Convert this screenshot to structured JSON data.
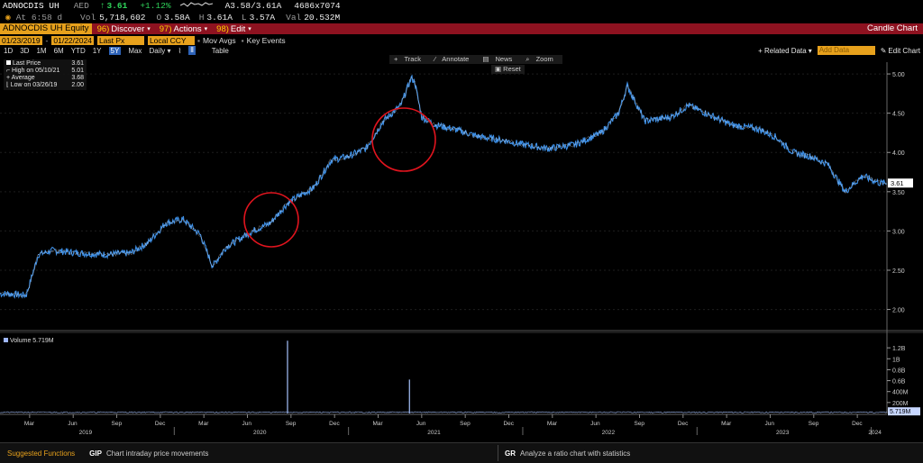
{
  "header": {
    "ticker": "ADNOCDIS UH",
    "currency": "AED",
    "arrow": "↑",
    "last": "3.61",
    "change": "+1.12%",
    "ask_bid": "A3.58/3.61A",
    "size": "4686x7074",
    "time_label": "At 6:58 d",
    "vol_label": "Vol",
    "volume": "5,718,602",
    "open_label": "O",
    "open": "3.58A",
    "high_label": "H",
    "high": "3.61A",
    "low_label": "L",
    "low": "3.57A",
    "val_label": "Val",
    "value": "20.532M"
  },
  "toolbar": {
    "security": "ADNOCDIS UH Equity",
    "discover_num": "96)",
    "discover": "Discover",
    "actions_num": "97)",
    "actions": "Actions",
    "edit_num": "98)",
    "edit": "Edit",
    "title": "Candle Chart"
  },
  "dates": {
    "start": "01/23/2019",
    "end": "01/22/2024",
    "field": "Last Px",
    "currency": "Local CCY",
    "mov_avgs": "Mov Avgs",
    "key_events": "Key Events"
  },
  "ranges": {
    "items": [
      "1D",
      "3D",
      "1M",
      "6M",
      "YTD",
      "1Y",
      "5Y",
      "Max"
    ],
    "selected": "5Y",
    "period": "Daily",
    "table": "Table",
    "related_data": "+ Related Data",
    "add_data": "Add Data",
    "edit_chart": "Edit Chart"
  },
  "mini_toolbar": {
    "track": "Track",
    "annotate": "Annotate",
    "news": "News",
    "zoom": "Zoom",
    "reset": "Reset"
  },
  "legend": {
    "last_price_label": "Last Price",
    "last_price": "3.61",
    "high_label": "High on 05/10/21",
    "high": "5.01",
    "average_label": "Average",
    "average": "3.68",
    "low_label": "Low on 03/26/19",
    "low": "2.00"
  },
  "volume_legend": "Volume 5.719M",
  "chart_data": {
    "type": "line",
    "x_labels": [
      "Mar",
      "Jun",
      "Sep",
      "Dec",
      "Mar",
      "Jun",
      "Sep",
      "Dec",
      "Mar",
      "Jun",
      "Sep",
      "Dec",
      "Mar",
      "Jun",
      "Sep",
      "Dec",
      "Mar",
      "Jun",
      "Sep",
      "Dec"
    ],
    "years": [
      "2019",
      "2020",
      "2021",
      "2022",
      "2023",
      "2024"
    ],
    "ylim": [
      1.8,
      5.15
    ],
    "y_ticks": [
      "5.00",
      "4.50",
      "4.00",
      "3.50",
      "3.00",
      "2.50",
      "2.00"
    ],
    "last_value_label": "3.61",
    "price_series": {
      "name": "Last Price",
      "x": [
        2019.05,
        2019.15,
        2019.22,
        2019.3,
        2019.45,
        2019.6,
        2019.75,
        2019.85,
        2019.95,
        2020.05,
        2020.15,
        2020.22,
        2020.3,
        2020.45,
        2020.55,
        2020.65,
        2020.72,
        2020.8,
        2020.9,
        2021.0,
        2021.1,
        2021.2,
        2021.3,
        2021.36,
        2021.38,
        2021.42,
        2021.5,
        2021.6,
        2021.75,
        2021.9,
        2022.0,
        2022.15,
        2022.3,
        2022.45,
        2022.55,
        2022.6,
        2022.7,
        2022.85,
        2022.95,
        2023.1,
        2023.2,
        2023.35,
        2023.45,
        2023.55,
        2023.65,
        2023.75,
        2023.85,
        2023.95,
        2024.05
      ],
      "y": [
        2.2,
        2.18,
        2.7,
        2.75,
        2.72,
        2.7,
        2.72,
        2.85,
        3.1,
        3.15,
        2.95,
        2.55,
        2.8,
        3.0,
        3.1,
        3.35,
        3.45,
        3.55,
        3.9,
        3.95,
        4.05,
        4.4,
        4.6,
        4.95,
        4.9,
        4.45,
        4.35,
        4.3,
        4.2,
        4.15,
        4.1,
        4.05,
        4.1,
        4.25,
        4.5,
        4.85,
        4.4,
        4.45,
        4.6,
        4.45,
        4.35,
        4.3,
        4.2,
        4.0,
        3.95,
        3.85,
        3.5,
        3.7,
        3.61
      ]
    },
    "volume_series": {
      "name": "Volume",
      "ylim": [
        0,
        1.4
      ],
      "y_ticks": [
        "1.2B",
        "1B",
        "0.8B",
        "0.6B",
        "400M",
        "200M"
      ],
      "last_label": "5.719M",
      "spikes": [
        {
          "x": 2020.65,
          "value": 1.33
        },
        {
          "x": 2021.35,
          "value": 0.62
        }
      ]
    }
  },
  "bottom": {
    "suggested": "Suggested Functions",
    "f1_code": "GIP",
    "f1_desc": "Chart intraday price movements",
    "f2_code": "GR",
    "f2_desc": "Analyze a ratio chart with statistics"
  }
}
